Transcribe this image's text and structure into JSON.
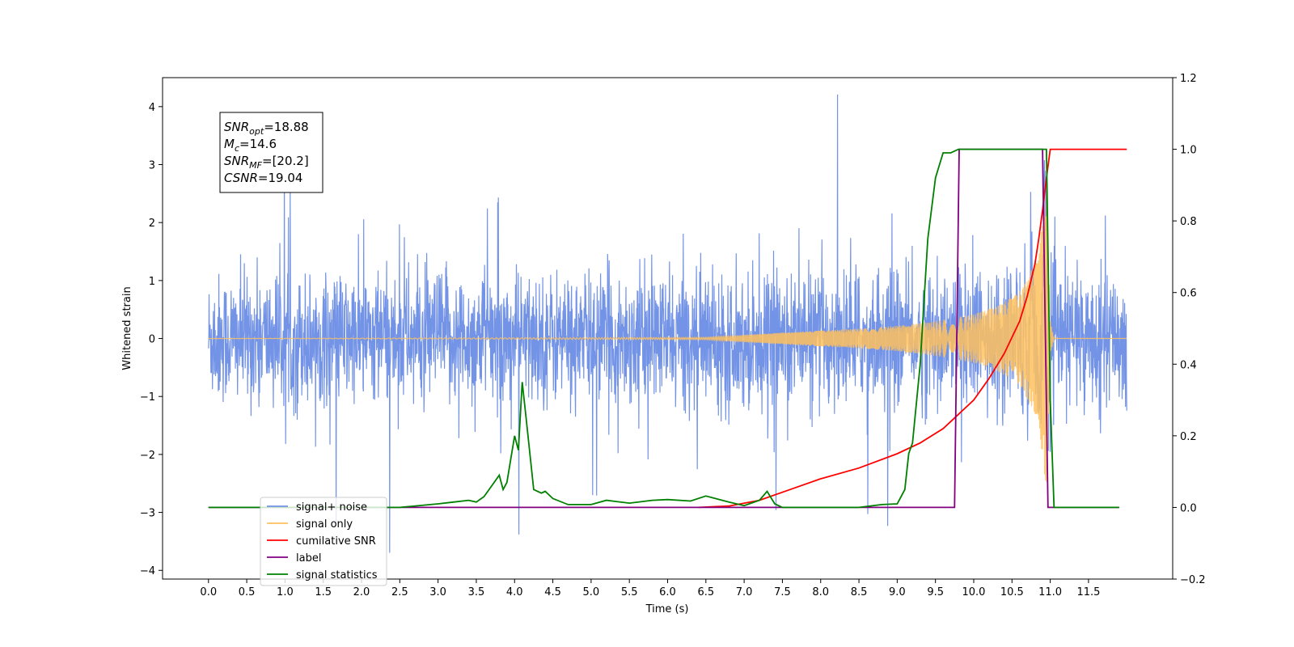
{
  "chart_data": {
    "type": "line",
    "title": "",
    "xlabel": "Time (s)",
    "ylabel": "Whitened strain",
    "xlim": [
      -0.6,
      12.6
    ],
    "ylim": [
      -4.15,
      4.5
    ],
    "y2lim": [
      -0.2,
      1.2
    ],
    "x_ticks": [
      0.0,
      0.5,
      1.0,
      1.5,
      2.0,
      2.5,
      3.0,
      3.5,
      4.0,
      4.5,
      5.0,
      5.5,
      6.0,
      6.5,
      7.0,
      7.5,
      8.0,
      8.5,
      9.0,
      9.5,
      10.0,
      10.5,
      11.0,
      11.5
    ],
    "x_tick_labels": [
      "0.0",
      "0.5",
      "1.0",
      "1.5",
      "2.0",
      "2.5",
      "3.0",
      "3.5",
      "4.0",
      "4.5",
      "5.0",
      "5.5",
      "6.0",
      "6.5",
      "7.0",
      "7.5",
      "8.0",
      "8.5",
      "9.0",
      "9.5",
      "10.0",
      "10.5",
      "11.0",
      "11.5"
    ],
    "y_ticks": [
      -4,
      -3,
      -2,
      -1,
      0,
      1,
      2,
      3,
      4
    ],
    "y_tick_labels": [
      "−4",
      "−3",
      "−2",
      "−1",
      "0",
      "1",
      "2",
      "3",
      "4"
    ],
    "y2_ticks": [
      -0.2,
      0.0,
      0.2,
      0.4,
      0.6,
      0.8,
      1.0,
      1.2
    ],
    "y2_tick_labels": [
      "−0.2",
      "0.0",
      "0.2",
      "0.4",
      "0.6",
      "0.8",
      "1.0",
      "1.2"
    ],
    "grid": false,
    "legend_position": "bottom-left",
    "annotation": {
      "lines": [
        {
          "sym": "SNR",
          "sub": "opt",
          "val": "=18.88"
        },
        {
          "sym": "M",
          "sub": "c",
          "val": "=14.6"
        },
        {
          "sym": "SNR",
          "sub": "MF",
          "val": "=[20.2]"
        },
        {
          "sym": "CSNR",
          "sub": "",
          "val": "=19.04"
        }
      ]
    },
    "series": [
      {
        "name": "signal+ noise",
        "axis": "left",
        "color": "#7393e6",
        "noise_band": {
          "x": [
            0.0,
            12.0
          ],
          "envelope_low": -1.7,
          "envelope_high": 1.45,
          "max_spike": 4.1,
          "min_spike": -3.7
        }
      },
      {
        "name": "signal only",
        "axis": "left",
        "color": "#ffc15e",
        "envelope": {
          "x": [
            0.0,
            6.5,
            7.5,
            8.5,
            9.0,
            9.5,
            10.0,
            10.3,
            10.6,
            10.8,
            10.9,
            10.95,
            11.0,
            11.05,
            12.0
          ],
          "amp": [
            0.0,
            0.02,
            0.1,
            0.17,
            0.22,
            0.3,
            0.42,
            0.55,
            0.8,
            1.3,
            2.0,
            2.8,
            0.3,
            0.0,
            0.0
          ]
        }
      },
      {
        "name": "cumilative SNR",
        "axis": "right",
        "color": "#ff0000",
        "x": [
          6.4,
          6.8,
          7.2,
          7.6,
          8.0,
          8.5,
          9.0,
          9.3,
          9.6,
          9.8,
          10.0,
          10.2,
          10.4,
          10.6,
          10.7,
          10.8,
          10.85,
          10.9,
          10.95,
          11.0,
          12.0
        ],
        "y": [
          0.0,
          0.004,
          0.02,
          0.05,
          0.08,
          0.11,
          0.15,
          0.18,
          0.22,
          0.26,
          0.3,
          0.36,
          0.43,
          0.52,
          0.59,
          0.68,
          0.75,
          0.83,
          0.92,
          1.0,
          1.0
        ]
      },
      {
        "name": "label",
        "axis": "right",
        "color": "#800080",
        "x": [
          0.0,
          9.75,
          9.81,
          10.9,
          10.97,
          11.07,
          11.9
        ],
        "y": [
          0.0,
          0.0,
          1.0,
          1.0,
          0.0,
          0.0,
          0.0
        ]
      },
      {
        "name": "signal statistics",
        "axis": "right",
        "color": "#008000",
        "x": [
          0.0,
          2.5,
          3.0,
          3.2,
          3.4,
          3.5,
          3.6,
          3.7,
          3.8,
          3.85,
          3.9,
          4.0,
          4.05,
          4.1,
          4.15,
          4.25,
          4.35,
          4.4,
          4.5,
          4.7,
          5.0,
          5.2,
          5.5,
          5.8,
          6.0,
          6.3,
          6.5,
          6.8,
          7.0,
          7.2,
          7.3,
          7.4,
          7.5,
          8.5,
          8.8,
          9.0,
          9.1,
          9.15,
          9.2,
          9.3,
          9.4,
          9.5,
          9.6,
          9.7,
          9.8,
          10.0,
          10.5,
          10.95,
          11.0,
          11.05,
          11.1,
          11.9
        ],
        "y": [
          0.0,
          0.0,
          0.01,
          0.015,
          0.02,
          0.015,
          0.03,
          0.06,
          0.09,
          0.05,
          0.07,
          0.2,
          0.16,
          0.35,
          0.25,
          0.05,
          0.04,
          0.045,
          0.025,
          0.008,
          0.008,
          0.02,
          0.012,
          0.02,
          0.022,
          0.018,
          0.032,
          0.015,
          0.005,
          0.02,
          0.045,
          0.01,
          0.0,
          0.0,
          0.008,
          0.01,
          0.05,
          0.15,
          0.18,
          0.4,
          0.75,
          0.92,
          0.99,
          0.99,
          1.0,
          1.0,
          1.0,
          1.0,
          0.3,
          0.0,
          0.0,
          0.0
        ]
      }
    ],
    "legend_entries": [
      {
        "label": "signal+ noise",
        "color": "#7393e6"
      },
      {
        "label": "signal only",
        "color": "#ffc15e"
      },
      {
        "label": "cumilative SNR",
        "color": "#ff0000"
      },
      {
        "label": "label",
        "color": "#800080"
      },
      {
        "label": "signal statistics",
        "color": "#008000"
      }
    ]
  }
}
